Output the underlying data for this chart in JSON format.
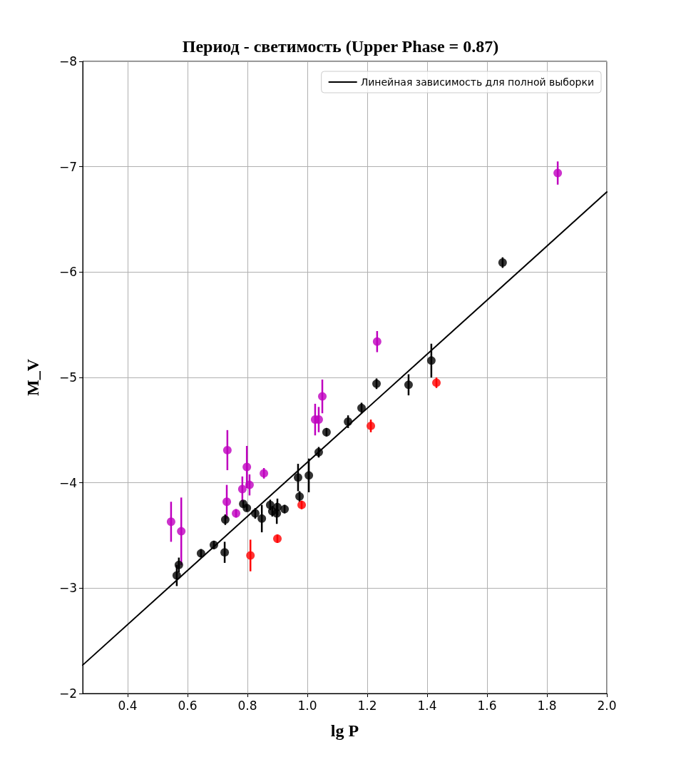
{
  "chart_data": {
    "type": "scatter",
    "title": "Период - светимость (Upper Phase = 0.87)",
    "xlabel": "lg P",
    "ylabel": "M_V",
    "xlim": [
      0.25,
      2.0
    ],
    "xticks": [
      0.4,
      0.6,
      0.8,
      {
        "value": 1.0,
        "label": "1.0"
      },
      1.2,
      1.4,
      1.6,
      1.8,
      {
        "value": 2.0,
        "label": "2.0"
      }
    ],
    "ylim": [
      -2,
      -8
    ],
    "yticks": [
      {
        "value": -8,
        "label": "−8"
      },
      {
        "value": -7,
        "label": "−7"
      },
      {
        "value": -6,
        "label": "−6"
      },
      {
        "value": -5,
        "label": "−5"
      },
      {
        "value": -4,
        "label": "−4"
      },
      {
        "value": -3,
        "label": "−3"
      },
      {
        "value": -2,
        "label": "−2"
      }
    ],
    "grid": true,
    "legend": "top right",
    "marker": "circle",
    "series": [
      {
        "color": "#000000",
        "x": [
          0.564,
          0.571,
          0.645,
          0.688,
          0.726,
          0.724,
          0.786,
          0.798,
          0.826,
          0.848,
          0.876,
          0.883,
          0.898,
          0.9,
          0.924,
          0.969,
          0.974,
          1.005,
          1.038,
          1.064,
          1.136,
          1.181,
          1.231,
          1.338,
          1.414,
          1.652
        ],
        "values": [
          -3.12,
          -3.22,
          -3.33,
          -3.41,
          -3.65,
          -3.34,
          -3.8,
          -3.76,
          -3.71,
          -3.66,
          -3.79,
          -3.73,
          -3.71,
          -3.77,
          -3.75,
          -4.05,
          -3.87,
          -4.07,
          -4.29,
          -4.48,
          -4.58,
          -4.71,
          -4.94,
          -4.93,
          -5.16,
          -6.09
        ],
        "errors": [
          0.1,
          0.07,
          0.04,
          0.04,
          0.05,
          0.1,
          0.03,
          0.03,
          0.05,
          0.13,
          0.05,
          0.05,
          0.1,
          0.08,
          0.04,
          0.13,
          0.05,
          0.16,
          0.05,
          0.04,
          0.06,
          0.05,
          0.05,
          0.1,
          0.16,
          0.05
        ]
      },
      {
        "color": "#bf00bf",
        "x": [
          0.545,
          0.579,
          0.731,
          0.733,
          0.762,
          0.783,
          0.798,
          0.807,
          0.855,
          1.026,
          1.038,
          1.05,
          1.233,
          1.836
        ],
        "values": [
          -3.63,
          -3.54,
          -3.82,
          -4.31,
          -3.71,
          -3.94,
          -4.15,
          -3.98,
          -4.09,
          -4.6,
          -4.6,
          -4.82,
          -5.34,
          -6.94
        ],
        "errors": [
          0.19,
          0.32,
          0.16,
          0.19,
          0.04,
          0.12,
          0.2,
          0.1,
          0.05,
          0.15,
          0.12,
          0.16,
          0.1,
          0.11
        ]
      },
      {
        "color": "#ff0000",
        "x": [
          0.81,
          0.9,
          0.981,
          1.212,
          1.431
        ],
        "values": [
          -3.31,
          -3.47,
          -3.79,
          -4.54,
          -4.95
        ],
        "errors": [
          0.15,
          0.04,
          0.04,
          0.06,
          0.05
        ]
      },
      {
        "type": "line",
        "name": "Линейная зависимость для полной выборки",
        "color": "#000000",
        "x": [
          0.25,
          2.0
        ],
        "values": [
          -2.27,
          -6.76
        ],
        "marker": "none",
        "line_style": "solid"
      }
    ]
  }
}
